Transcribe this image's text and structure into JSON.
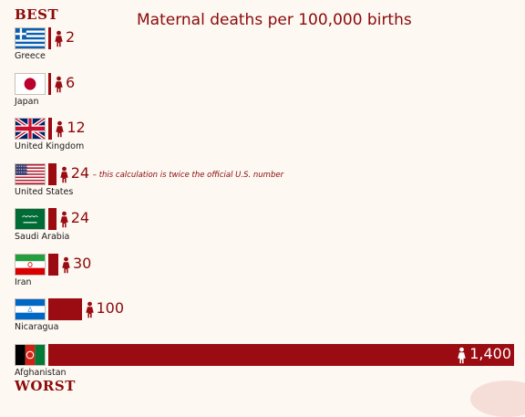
{
  "chart_data": {
    "type": "bar",
    "orientation": "horizontal",
    "title": "Maternal deaths per 100,000 births",
    "top_label": "BEST",
    "bottom_label": "WORST",
    "bar_color": "#9a0b12",
    "text_color": "#8b0a0a",
    "categories": [
      "Greece",
      "Japan",
      "United Kingdom",
      "United States",
      "Saudi Arabia",
      "Iran",
      "Nicaragua",
      "Afghanistan"
    ],
    "values": [
      2,
      6,
      12,
      24,
      24,
      30,
      100,
      1400
    ],
    "value_labels": [
      "2",
      "6",
      "12",
      "24",
      "24",
      "30",
      "100",
      "1,400"
    ],
    "annotations": [
      {
        "category": "United States",
        "text": "– this calculation is twice the official U.S. number"
      }
    ],
    "icons": [
      "flag-greece-icon",
      "flag-japan-icon",
      "flag-united-kingdom-icon",
      "flag-united-states-icon",
      "flag-saudi-arabia-icon",
      "flag-iran-icon",
      "flag-nicaragua-icon",
      "flag-afghanistan-icon",
      "woman-icon"
    ]
  }
}
